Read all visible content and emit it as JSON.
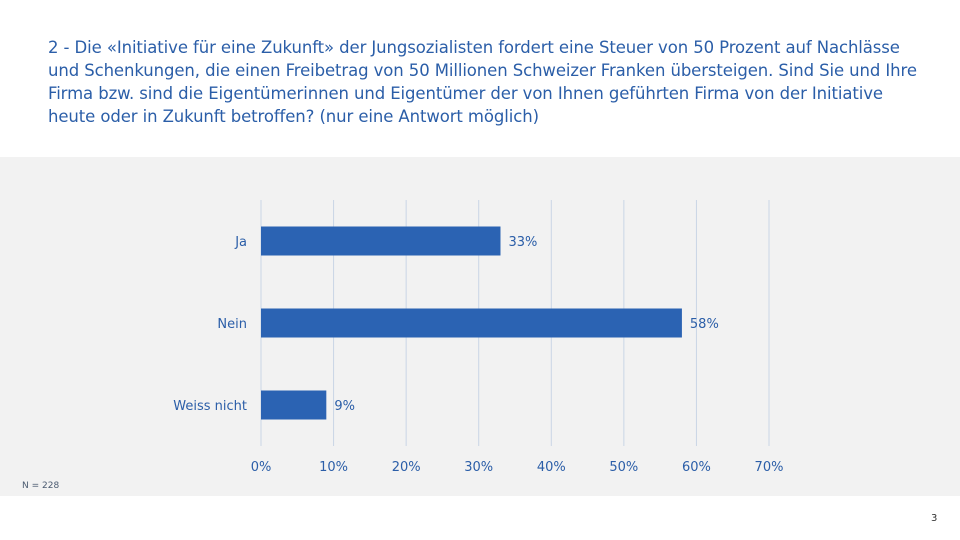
{
  "question": "2 - Die «Initiative für eine Zukunft» der Jungsozialisten fordert eine Steuer von 50 Prozent auf Nachlässe und Schenkungen, die einen Freibetrag von 50 Millionen Schweizer Franken übersteigen. Sind Sie und Ihre Firma bzw. sind die Eigentümerinnen und Eigentümer der von Ihnen geführten Firma von der Initiative heute oder in Zukunft betroffen? (nur eine Antwort möglich)",
  "sample_note": "N = 228",
  "page_number": "3",
  "colors": {
    "bar": "#2b63b3",
    "text": "#2b5ea8",
    "grid": "#c9d5e6",
    "panel": "#f2f2f2"
  },
  "chart_data": {
    "type": "bar",
    "orientation": "horizontal",
    "categories": [
      "Ja",
      "Nein",
      "Weiss nicht"
    ],
    "values": [
      33,
      58,
      9
    ],
    "value_labels": [
      "33%",
      "58%",
      "9%"
    ],
    "xlim": [
      0,
      70
    ],
    "xticks": [
      "0%",
      "10%",
      "20%",
      "30%",
      "40%",
      "50%",
      "60%",
      "70%"
    ],
    "grid": true,
    "legend": "none",
    "title": "",
    "xlabel": "",
    "ylabel": ""
  }
}
